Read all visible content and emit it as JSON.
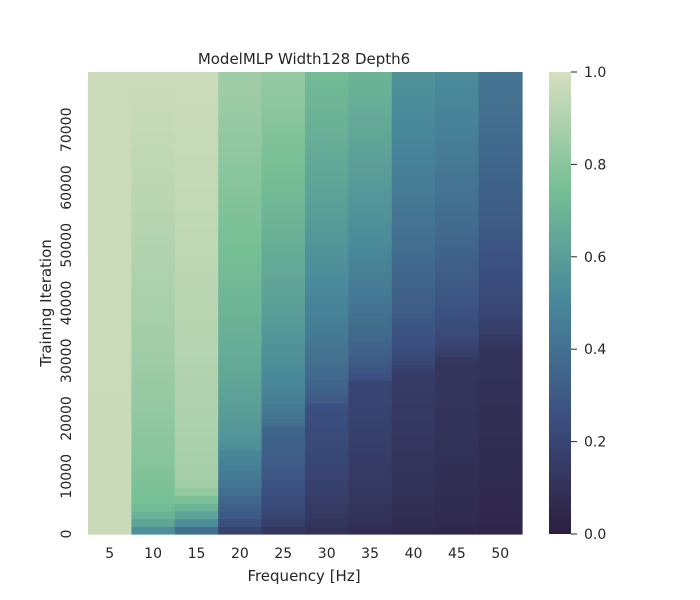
{
  "chart_data": {
    "type": "heatmap",
    "title": "ModelMLP Width128 Depth6",
    "xlabel": "Frequency [Hz]",
    "ylabel": "Training Iteration",
    "x": [
      5,
      10,
      15,
      20,
      25,
      30,
      35,
      40,
      45,
      50
    ],
    "y_ticks": [
      "0",
      "10000",
      "20000",
      "30000",
      "40000",
      "50000",
      "60000",
      "70000"
    ],
    "ylim": [
      0,
      80000
    ],
    "colorbar": {
      "range": [
        0.0,
        1.0
      ],
      "ticks": [
        "0.0",
        "0.2",
        "0.4",
        "0.6",
        "0.8",
        "1.0"
      ]
    },
    "colormap_stops": [
      "#2d1e3e",
      "#3b4f80",
      "#48879a",
      "#77bf95",
      "#d7dfbf"
    ],
    "series": [
      {
        "x": 5,
        "early": 0.35,
        "plateau": 0.96,
        "rise_iter": 400,
        "final": 0.97
      },
      {
        "x": 10,
        "early": 0.4,
        "plateau": 0.72,
        "rise_iter": 4000,
        "final": 0.97
      },
      {
        "x": 15,
        "early": 0.2,
        "plateau": 0.85,
        "rise_iter": 8000,
        "final": 0.97
      },
      {
        "x": 20,
        "early": 0.1,
        "plateau": 0.5,
        "rise_iter": 14000,
        "final": 0.86
      },
      {
        "x": 25,
        "early": 0.08,
        "plateau": 0.35,
        "rise_iter": 18000,
        "final": 0.83
      },
      {
        "x": 30,
        "early": 0.06,
        "plateau": 0.25,
        "rise_iter": 22000,
        "final": 0.73
      },
      {
        "x": 35,
        "early": 0.05,
        "plateau": 0.2,
        "rise_iter": 26000,
        "final": 0.7
      },
      {
        "x": 40,
        "early": 0.04,
        "plateau": 0.15,
        "rise_iter": 28000,
        "final": 0.55
      },
      {
        "x": 45,
        "early": 0.04,
        "plateau": 0.12,
        "rise_iter": 30000,
        "final": 0.52
      },
      {
        "x": 50,
        "early": 0.03,
        "plateau": 0.1,
        "rise_iter": 32000,
        "final": 0.42
      }
    ]
  }
}
